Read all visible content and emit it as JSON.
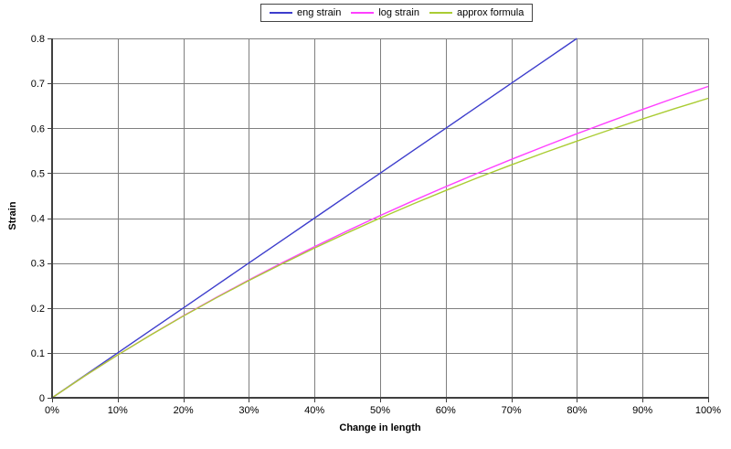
{
  "chart_data": {
    "type": "line",
    "title": "",
    "xlabel": "Change in length",
    "ylabel": "Strain",
    "xlim": [
      0,
      100
    ],
    "ylim": [
      0,
      0.8
    ],
    "grid": true,
    "legend_position": "top-center",
    "xticks": {
      "values": [
        0,
        10,
        20,
        30,
        40,
        50,
        60,
        70,
        80,
        90,
        100
      ],
      "labels": [
        "0%",
        "10%",
        "20%",
        "30%",
        "40%",
        "50%",
        "60%",
        "70%",
        "80%",
        "90%",
        "100%"
      ]
    },
    "yticks": {
      "values": [
        0,
        0.1,
        0.2,
        0.3,
        0.4,
        0.5,
        0.6,
        0.7,
        0.8
      ],
      "labels": [
        "0",
        "0.1",
        "0.2",
        "0.3",
        "0.4",
        "0.5",
        "0.6",
        "0.7",
        "0.8"
      ]
    },
    "series": [
      {
        "name": "eng strain",
        "color": "#3d3dcc",
        "x": [
          0,
          5,
          10,
          15,
          20,
          25,
          30,
          35,
          40,
          45,
          50,
          55,
          60,
          65,
          70,
          75,
          80
        ],
        "values": [
          0,
          0.05,
          0.1,
          0.15,
          0.2,
          0.25,
          0.3,
          0.35,
          0.4,
          0.45,
          0.5,
          0.55,
          0.6,
          0.65,
          0.7,
          0.75,
          0.8
        ]
      },
      {
        "name": "log strain",
        "color": "#ff40ff",
        "x": [
          0,
          5,
          10,
          15,
          20,
          25,
          30,
          35,
          40,
          45,
          50,
          55,
          60,
          65,
          70,
          75,
          80,
          85,
          90,
          95,
          100
        ],
        "values": [
          0,
          0.0488,
          0.0953,
          0.1398,
          0.1823,
          0.2231,
          0.2624,
          0.3001,
          0.3365,
          0.3716,
          0.4055,
          0.4383,
          0.47,
          0.5008,
          0.5306,
          0.5596,
          0.5878,
          0.6152,
          0.6419,
          0.6678,
          0.6931
        ]
      },
      {
        "name": "approx formula",
        "color": "#aacc33",
        "x": [
          0,
          5,
          10,
          15,
          20,
          25,
          30,
          35,
          40,
          45,
          50,
          55,
          60,
          65,
          70,
          75,
          80,
          85,
          90,
          95,
          100
        ],
        "values": [
          0,
          0.0488,
          0.0952,
          0.1395,
          0.1818,
          0.2222,
          0.2609,
          0.2979,
          0.3333,
          0.3673,
          0.4,
          0.4314,
          0.4615,
          0.4906,
          0.5185,
          0.5455,
          0.5714,
          0.5965,
          0.6207,
          0.6441,
          0.6667
        ]
      }
    ],
    "colors": {
      "grid": "#7f7f7f",
      "axis": "#404040",
      "background": "#ffffff"
    }
  }
}
